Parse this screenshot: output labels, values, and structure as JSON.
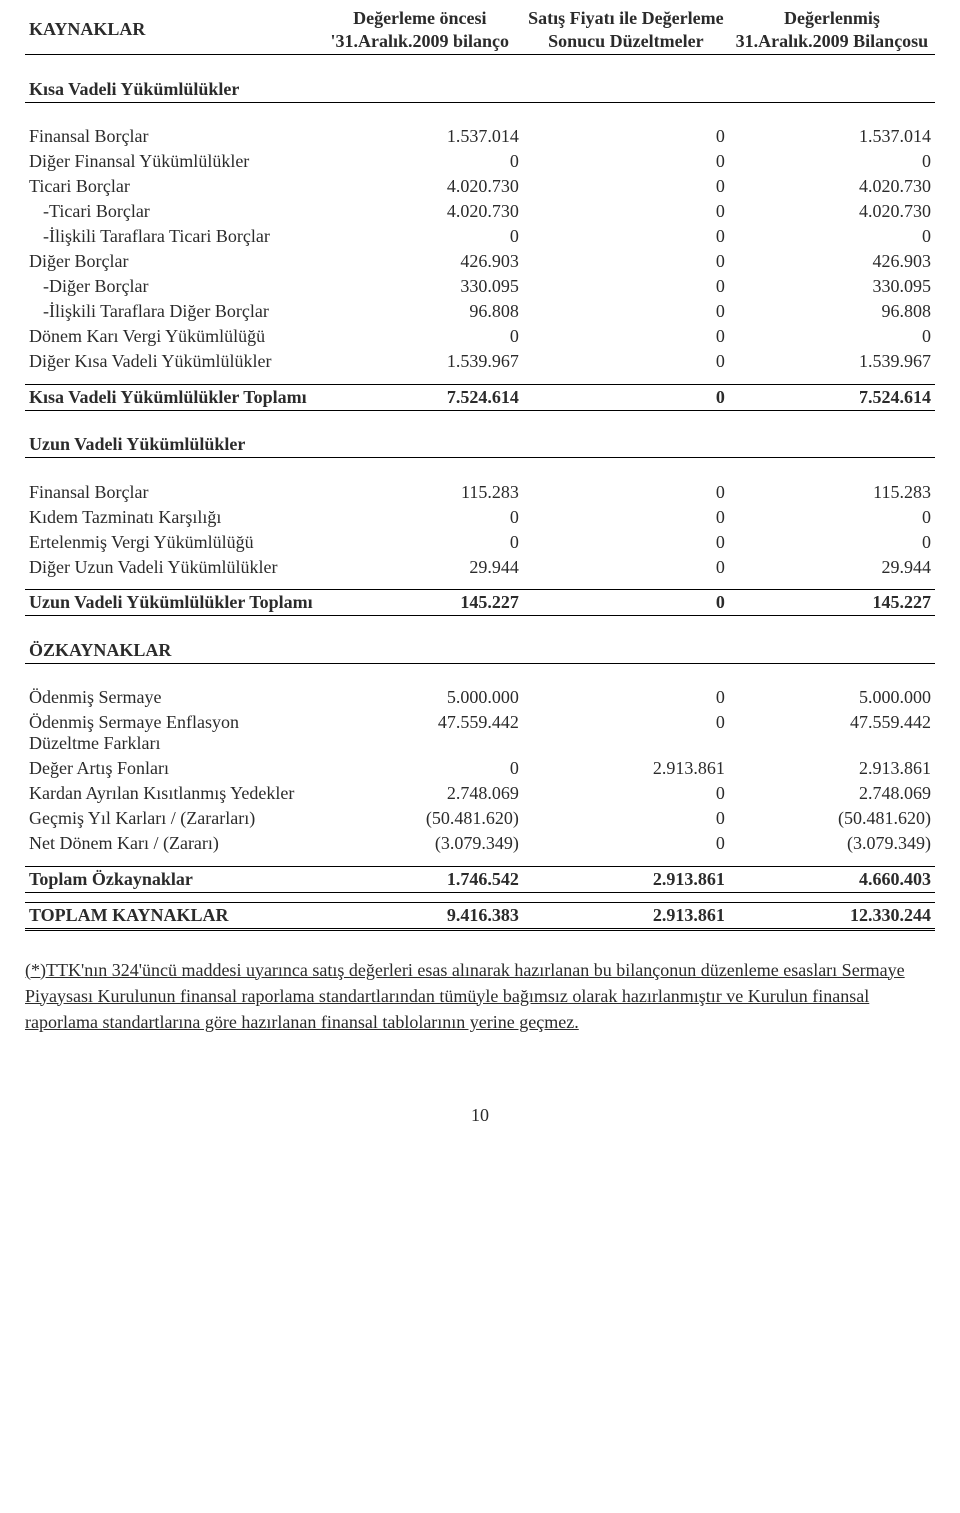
{
  "header": {
    "col0": "KAYNAKLAR",
    "col1": "Değerleme öncesi '31.Aralık.2009 bilanço",
    "col2": "Satış Fiyatı ile Değerleme Sonucu Düzeltmeler",
    "col3": "Değerlenmiş 31.Aralık.2009 Bilançosu"
  },
  "sec_kvy": "Kısa Vadeli Yükümlülükler",
  "kvy": [
    {
      "l": "Finansal Borçlar",
      "a": "1.537.014",
      "b": "0",
      "c": "1.537.014",
      "ind": 0
    },
    {
      "l": "Diğer Finansal Yükümlülükler",
      "a": "0",
      "b": "0",
      "c": "0",
      "ind": 0
    },
    {
      "l": "Ticari Borçlar",
      "a": "4.020.730",
      "b": "0",
      "c": "4.020.730",
      "ind": 0
    },
    {
      "l": "-Ticari Borçlar",
      "a": "4.020.730",
      "b": "0",
      "c": "4.020.730",
      "ind": 1
    },
    {
      "l": "-İlişkili Taraflara Ticari Borçlar",
      "a": "0",
      "b": "0",
      "c": "0",
      "ind": 1
    },
    {
      "l": "Diğer Borçlar",
      "a": "426.903",
      "b": "0",
      "c": "426.903",
      "ind": 0
    },
    {
      "l": "-Diğer Borçlar",
      "a": "330.095",
      "b": "0",
      "c": "330.095",
      "ind": 1
    },
    {
      "l": "-İlişkili Taraflara Diğer Borçlar",
      "a": "96.808",
      "b": "0",
      "c": "96.808",
      "ind": 1
    },
    {
      "l": "Dönem Karı Vergi Yükümlülüğü",
      "a": "0",
      "b": "0",
      "c": "0",
      "ind": 0
    },
    {
      "l": "Diğer Kısa Vadeli Yükümlülükler",
      "a": "1.539.967",
      "b": "0",
      "c": "1.539.967",
      "ind": 0
    }
  ],
  "kvy_total": {
    "l": "Kısa Vadeli Yükümlülükler Toplamı",
    "a": "7.524.614",
    "b": "0",
    "c": "7.524.614"
  },
  "sec_uvy": "Uzun Vadeli Yükümlülükler",
  "uvy": [
    {
      "l": "Finansal Borçlar",
      "a": "115.283",
      "b": "0",
      "c": "115.283"
    },
    {
      "l": "Kıdem Tazminatı Karşılığı",
      "a": "0",
      "b": "0",
      "c": "0"
    },
    {
      "l": "Ertelenmiş Vergi Yükümlülüğü",
      "a": "0",
      "b": "0",
      "c": "0"
    },
    {
      "l": "Diğer Uzun Vadeli Yükümlülükler",
      "a": "29.944",
      "b": "0",
      "c": "29.944"
    }
  ],
  "uvy_total": {
    "l": "Uzun Vadeli Yükümlülükler Toplamı",
    "a": "145.227",
    "b": "0",
    "c": "145.227"
  },
  "sec_ozk": "ÖZKAYNAKLAR",
  "ozk": [
    {
      "l": "Ödenmiş Sermaye",
      "a": "5.000.000",
      "b": "0",
      "c": "5.000.000"
    },
    {
      "l": "Ödenmiş Sermaye Enflasyon Düzeltme Farkları",
      "a": "47.559.442",
      "b": "0",
      "c": "47.559.442"
    },
    {
      "l": "Değer Artış Fonları",
      "a": "0",
      "b": "2.913.861",
      "c": "2.913.861"
    },
    {
      "l": "Kardan Ayrılan Kısıtlanmış Yedekler",
      "a": "2.748.069",
      "b": "0",
      "c": "2.748.069"
    },
    {
      "l": "Geçmiş Yıl Karları / (Zararları)",
      "a": "(50.481.620)",
      "b": "0",
      "c": "(50.481.620)"
    },
    {
      "l": "Net Dönem Karı / (Zararı)",
      "a": "(3.079.349)",
      "b": "0",
      "c": "(3.079.349)"
    }
  ],
  "ozk_total": {
    "l": "Toplam Özkaynaklar",
    "a": "1.746.542",
    "b": "2.913.861",
    "c": "4.660.403"
  },
  "grand_total": {
    "l": "TOPLAM KAYNAKLAR",
    "a": "9.416.383",
    "b": "2.913.861",
    "c": "12.330.244"
  },
  "footnote": "(*)TTK'nın 324'üncü maddesi uyarınca satış değerleri esas alınarak hazırlanan bu bilançonun düzenleme esasları Sermaye Piyaysası Kurulunun finansal raporlama standartlarından tümüyle bağımsız olarak hazırlanmıştır ve Kurulun finansal raporlama standartlarına göre hazırlanan finansal tablolarının yerine geçmez.",
  "page": "10"
}
